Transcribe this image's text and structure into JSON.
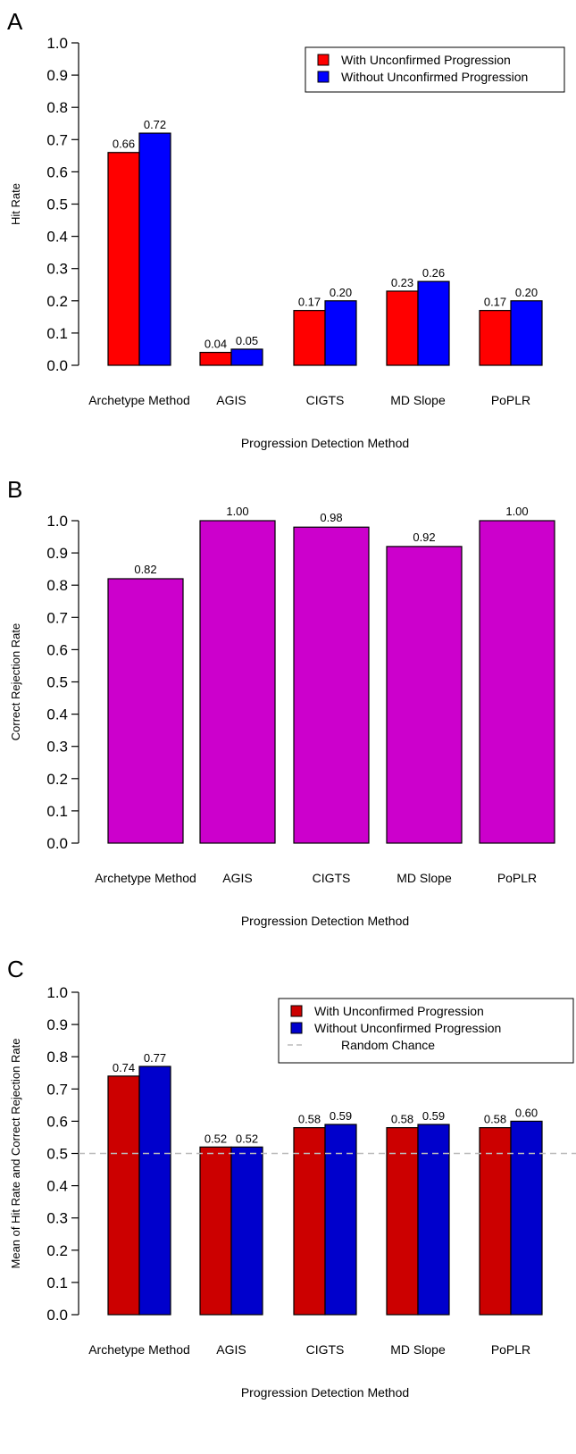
{
  "chart_data": [
    {
      "type": "bar",
      "panel_label": "A",
      "categories": [
        "Archetype Method",
        "AGIS",
        "CIGTS",
        "MD Slope",
        "PoPLR"
      ],
      "series": [
        {
          "name": "With Unconfirmed Progression",
          "color": "#ff0000",
          "values": [
            0.66,
            0.04,
            0.17,
            0.23,
            0.17
          ],
          "labels": [
            "0.66",
            "0.04",
            "0.17",
            "0.23",
            "0.17"
          ]
        },
        {
          "name": "Without Unconfirmed Progression",
          "color": "#0000ff",
          "values": [
            0.72,
            0.05,
            0.2,
            0.26,
            0.2
          ],
          "labels": [
            "0.72",
            "0.05",
            "0.20",
            "0.26",
            "0.20"
          ]
        }
      ],
      "xlabel": "Progression Detection Method",
      "ylabel": "Hit Rate",
      "ylim": [
        0,
        1
      ],
      "yticks": [
        "0.0",
        "0.1",
        "0.2",
        "0.3",
        "0.4",
        "0.5",
        "0.6",
        "0.7",
        "0.8",
        "0.9",
        "1.0"
      ],
      "legend": "top-right",
      "grid": false
    },
    {
      "type": "bar",
      "panel_label": "B",
      "categories": [
        "Archetype Method",
        "AGIS",
        "CIGTS",
        "MD Slope",
        "PoPLR"
      ],
      "series": [
        {
          "color": "#cc00cc",
          "values": [
            0.82,
            1.0,
            0.98,
            0.92,
            1.0
          ],
          "labels": [
            "0.82",
            "1.00",
            "0.98",
            "0.92",
            "1.00"
          ]
        }
      ],
      "xlabel": "Progression Detection Method",
      "ylabel": "Correct Rejection Rate",
      "ylim": [
        0,
        1
      ],
      "yticks": [
        "0.0",
        "0.1",
        "0.2",
        "0.3",
        "0.4",
        "0.5",
        "0.6",
        "0.7",
        "0.8",
        "0.9",
        "1.0"
      ],
      "grid": false
    },
    {
      "type": "bar",
      "panel_label": "C",
      "categories": [
        "Archetype Method",
        "AGIS",
        "CIGTS",
        "MD Slope",
        "PoPLR"
      ],
      "series": [
        {
          "name": "With Unconfirmed Progression",
          "color": "#cc0000",
          "values": [
            0.74,
            0.52,
            0.58,
            0.58,
            0.58
          ],
          "labels": [
            "0.74",
            "0.52",
            "0.58",
            "0.58",
            "0.58"
          ]
        },
        {
          "name": "Without Unconfirmed Progression",
          "color": "#0000cc",
          "values": [
            0.77,
            0.52,
            0.59,
            0.59,
            0.6
          ],
          "labels": [
            "0.77",
            "0.52",
            "0.59",
            "0.59",
            "0.60"
          ]
        }
      ],
      "reference_line": {
        "name": "Random Chance",
        "y": 0.5,
        "color": "#bbbbbb",
        "style": "dashed"
      },
      "xlabel": "Progression Detection Method",
      "ylabel": "Mean of Hit Rate and Correct Rejection Rate",
      "ylim": [
        0,
        1
      ],
      "yticks": [
        "0.0",
        "0.1",
        "0.2",
        "0.3",
        "0.4",
        "0.5",
        "0.6",
        "0.7",
        "0.8",
        "0.9",
        "1.0"
      ],
      "legend": "top-right",
      "grid": false
    }
  ]
}
